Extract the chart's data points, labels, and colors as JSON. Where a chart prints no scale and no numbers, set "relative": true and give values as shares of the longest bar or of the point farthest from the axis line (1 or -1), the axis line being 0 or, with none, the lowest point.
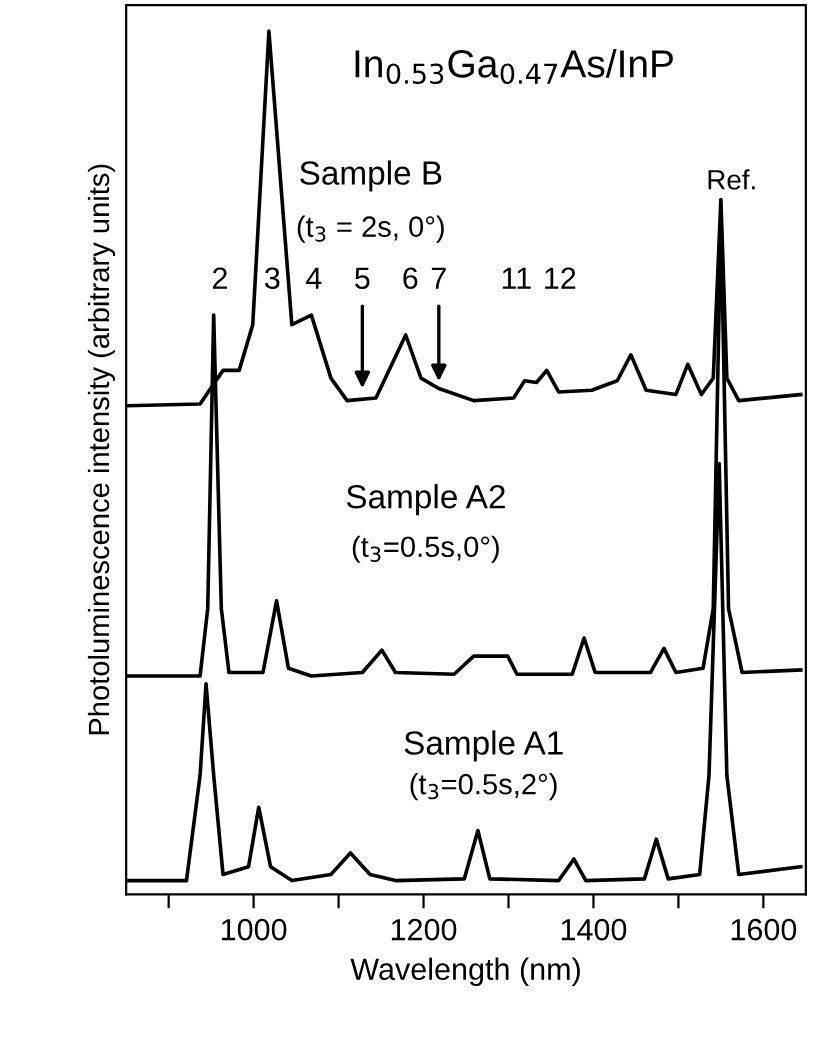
{
  "chart_data": {
    "type": "line",
    "relative": true,
    "title": "In$_{0.53}$Ga$_{0.47}$As/InP",
    "xlabel": "Wavelength (nm)",
    "ylabel": "Photoluminescence intensity (arbitrary units)",
    "xlim": [
      850,
      1650
    ],
    "xticks": [
      {
        "value": 900,
        "label": null
      },
      1000,
      {
        "value": 1100,
        "label": null
      },
      1200,
      {
        "value": 1300,
        "label": null
      },
      1400,
      {
        "value": 1500,
        "label": null
      },
      1600
    ],
    "grid": false,
    "legend": false,
    "marker": "none",
    "line_style": "solid",
    "series": [
      {
        "color": "#000000",
        "x": [
          852,
          937,
          964,
          983,
          999,
          1018,
          1034,
          1045,
          1068,
          1091,
          1110,
          1144,
          1179,
          1197,
          1218,
          1259,
          1306,
          1319,
          1333,
          1345,
          1359,
          1398,
          1428,
          1444,
          1462,
          1497,
          1511,
          1527,
          1541,
          1550,
          1557,
          1571,
          1644
        ],
        "values": [
          0.566,
          0.568,
          0.607,
          0.607,
          0.66,
          1.0,
          0.798,
          0.66,
          0.671,
          0.598,
          0.572,
          0.575,
          0.648,
          0.598,
          0.586,
          0.572,
          0.575,
          0.595,
          0.593,
          0.607,
          0.582,
          0.584,
          0.595,
          0.625,
          0.584,
          0.579,
          0.614,
          0.579,
          0.598,
          0.805,
          0.598,
          0.572,
          0.579
        ]
      },
      {
        "color": "#000000",
        "x": [
          852,
          937,
          946,
          953,
          962,
          971,
          1011,
          1027,
          1041,
          1068,
          1128,
          1151,
          1167,
          1236,
          1259,
          1282,
          1299,
          1310,
          1375,
          1389,
          1402,
          1467,
          1483,
          1497,
          1529,
          1541,
          1550,
          1559,
          1575,
          1644
        ],
        "values": [
          0.253,
          0.253,
          0.331,
          0.671,
          0.331,
          0.257,
          0.257,
          0.34,
          0.262,
          0.253,
          0.257,
          0.283,
          0.257,
          0.255,
          0.276,
          0.276,
          0.276,
          0.255,
          0.255,
          0.297,
          0.257,
          0.257,
          0.285,
          0.257,
          0.262,
          0.331,
          0.786,
          0.331,
          0.257,
          0.26
        ]
      },
      {
        "color": "#000000",
        "x": [
          852,
          921,
          937,
          944,
          953,
          964,
          994,
          1006,
          1020,
          1045,
          1091,
          1114,
          1137,
          1167,
          1248,
          1264,
          1278,
          1359,
          1377,
          1391,
          1460,
          1474,
          1488,
          1525,
          1536,
          1548,
          1557,
          1571,
          1644
        ],
        "values": [
          0.016,
          0.016,
          0.138,
          0.244,
          0.138,
          0.023,
          0.032,
          0.101,
          0.032,
          0.016,
          0.023,
          0.048,
          0.023,
          0.016,
          0.018,
          0.074,
          0.018,
          0.016,
          0.041,
          0.016,
          0.018,
          0.064,
          0.018,
          0.023,
          0.138,
          0.499,
          0.138,
          0.023,
          0.032
        ]
      }
    ],
    "annotations": [
      "Sample B",
      "(t$_{3}$ = 2s, 0°)",
      "Sample A2",
      "(t$_{3}$=0.5s,0°)",
      "Sample A1",
      "(t$_{3}$=0.5s,2°)",
      "Ref.",
      "2",
      "3",
      "4",
      "6",
      "11",
      "12",
      {
        "text": "5",
        "x": 1128,
        "y": 0.58
      },
      {
        "text": "7",
        "x": 1218,
        "y": 0.588
      }
    ]
  }
}
